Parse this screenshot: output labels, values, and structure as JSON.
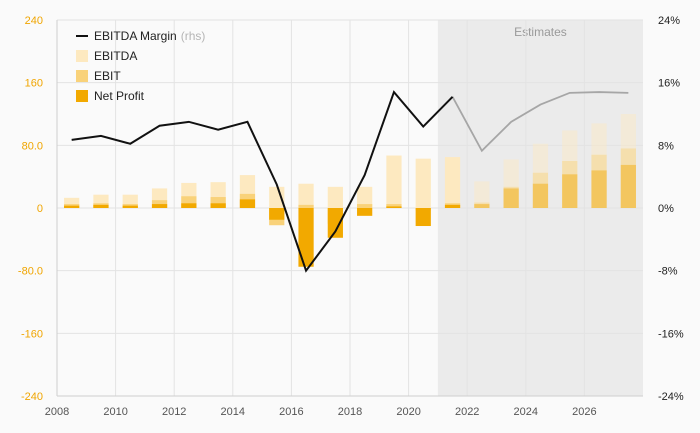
{
  "chart_data": {
    "type": "bar",
    "estimates_label": "Estimates",
    "estimates_start_year": 2021,
    "colors": {
      "ebitda": "#fde9c0",
      "ebit": "#f9d27a",
      "net_profit": "#f2a900",
      "margin_line": "#111111",
      "margin_line_est": "#a6a6a6",
      "left_axis_labels": "#f0a500",
      "estimates_band": "#ebebeb",
      "grid": "#e3e3e3"
    },
    "years": [
      2008,
      2009,
      2010,
      2011,
      2012,
      2013,
      2014,
      2015,
      2016,
      2017,
      2018,
      2019,
      2020,
      2021,
      2022,
      2023,
      2024,
      2025,
      2026,
      2027
    ],
    "x_ticks": [
      "2008",
      "2010",
      "2012",
      "2014",
      "2016",
      "2018",
      "2020",
      "2022",
      "2024",
      "2026"
    ],
    "y_left": {
      "ylim": [
        -240,
        240
      ],
      "ticks": [
        "240",
        "160",
        "80.0",
        "0",
        "-80.0",
        "-160",
        "-240"
      ]
    },
    "y_right": {
      "ylim": [
        -24,
        24
      ],
      "ticks": [
        "24%",
        "16%",
        "8%",
        "0%",
        "-8%",
        "-16%",
        "-24%"
      ]
    },
    "series": [
      {
        "name": "EBITDA",
        "values": [
          13,
          17,
          17,
          25,
          32,
          33,
          42,
          27,
          31,
          27,
          27,
          67,
          63,
          65,
          34,
          62,
          82,
          99,
          108,
          120
        ]
      },
      {
        "name": "EBIT",
        "values": [
          5,
          6,
          5,
          10,
          15,
          14,
          18,
          -22,
          4,
          -20,
          5,
          5,
          -3,
          6,
          7,
          27,
          45,
          60,
          68,
          76
        ]
      },
      {
        "name": "Net Profit",
        "values": [
          3,
          4,
          3,
          5,
          6,
          6,
          11,
          -15,
          -75,
          -38,
          -10,
          2,
          -23,
          4,
          5,
          25,
          31,
          43,
          48,
          55
        ]
      },
      {
        "name": "EBITDA Margin",
        "axis": "rhs",
        "values": [
          8.7,
          9.2,
          8.2,
          10.5,
          11.0,
          10.0,
          11.0,
          3.0,
          -8.0,
          -3.0,
          4.2,
          14.8,
          10.4,
          14.2,
          7.3,
          11.0,
          13.2,
          14.7,
          14.8,
          14.7
        ]
      }
    ],
    "legend": [
      {
        "label": "EBITDA Margin",
        "note": "(rhs)",
        "kind": "line"
      },
      {
        "label": "EBITDA",
        "kind": "bar"
      },
      {
        "label": "EBIT",
        "kind": "bar"
      },
      {
        "label": "Net Profit",
        "kind": "bar"
      }
    ],
    "grid": true,
    "legend_position": "top-left"
  }
}
